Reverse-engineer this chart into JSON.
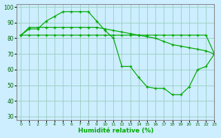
{
  "xlabel": "Humidité relative (%)",
  "bg_color": "#cceeff",
  "grid_color": "#99ccbb",
  "line_color": "#00aa00",
  "line1": [
    82,
    86,
    86,
    91,
    94,
    97,
    97,
    97,
    97,
    91,
    85,
    80,
    62,
    62,
    55,
    49,
    48,
    48,
    44,
    44,
    49,
    60,
    62,
    70
  ],
  "line2": [
    82,
    87,
    87,
    87,
    87,
    87,
    87,
    87,
    87,
    87,
    86,
    85,
    84,
    83,
    82,
    81,
    80,
    78,
    76,
    75,
    74,
    73,
    72,
    70
  ],
  "line3": [
    82,
    82,
    82,
    82,
    82,
    82,
    82,
    82,
    82,
    82,
    82,
    82,
    82,
    82,
    82,
    82,
    82,
    82,
    82,
    82,
    82,
    82,
    82,
    70
  ],
  "xlim": [
    -0.5,
    23
  ],
  "ylim": [
    28,
    102
  ],
  "yticks": [
    30,
    40,
    50,
    60,
    70,
    80,
    90,
    100
  ],
  "xticks": [
    0,
    1,
    2,
    3,
    4,
    5,
    6,
    7,
    8,
    9,
    10,
    11,
    12,
    13,
    14,
    15,
    16,
    17,
    18,
    19,
    20,
    21,
    22,
    23
  ]
}
